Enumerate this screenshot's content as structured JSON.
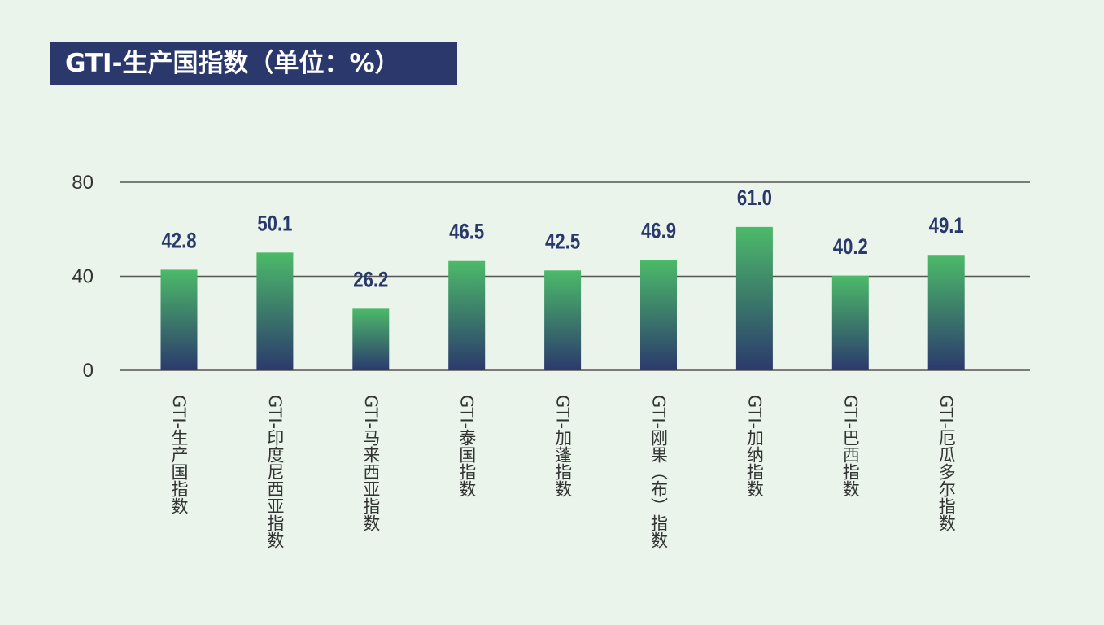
{
  "chart_data": {
    "type": "bar",
    "title": "GTI-生产国指数（单位：%）",
    "categories": [
      "GTI-生产国指数",
      "GTI-印度尼西亚指数",
      "GTI-马来西亚指数",
      "GTI-泰国指数",
      "GTI-加蓬指数",
      "GTI-刚果（布）指数",
      "GTI-加纳指数",
      "GTI-巴西指数",
      "GTI-厄瓜多尔指数"
    ],
    "values": [
      42.8,
      50.1,
      26.2,
      46.5,
      42.5,
      46.9,
      61.0,
      40.2,
      49.1
    ],
    "data_labels": [
      "42.8",
      "50.1",
      "26.2",
      "46.5",
      "42.5",
      "46.9",
      "61.0",
      "40.2",
      "49.1"
    ],
    "yticks": [
      "0",
      "40",
      "80"
    ],
    "ylim": [
      0,
      80
    ],
    "grid": true,
    "colors": {
      "bar_top": "#4cba69",
      "bar_bottom": "#2b3a6c",
      "label": "#2b386b",
      "title_bg": "#2b386b"
    }
  }
}
